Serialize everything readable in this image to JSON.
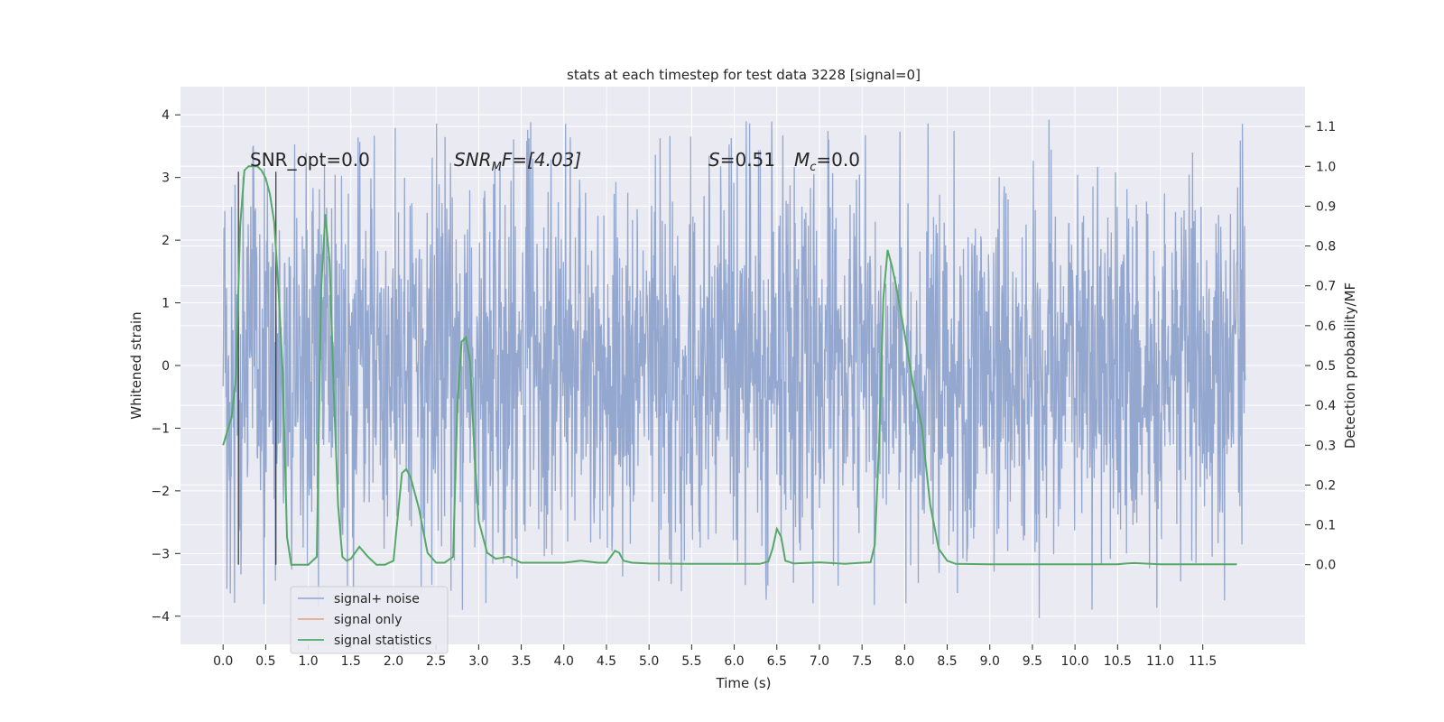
{
  "chart_data": {
    "type": "line",
    "title": "stats at each timestep for test data 3228 [signal=0]",
    "xlabel": "Time (s)",
    "ylabel": "Whitened strain",
    "y2label": "Detection probability/MF",
    "xlim": [
      -0.5,
      12.7
    ],
    "ylim": [
      -4.45,
      4.45
    ],
    "y2lim": [
      -0.2,
      1.2
    ],
    "x_ticks": [
      0.0,
      0.5,
      1.0,
      1.5,
      2.0,
      2.5,
      3.0,
      3.5,
      4.0,
      4.5,
      5.0,
      5.5,
      6.0,
      6.5,
      7.0,
      7.5,
      8.0,
      8.5,
      9.0,
      9.5,
      10.0,
      10.5,
      11.0,
      11.5
    ],
    "x_tick_labels": [
      "0.0",
      "0.5",
      "1.0",
      "1.5",
      "2.0",
      "2.5",
      "3.0",
      "3.5",
      "4.0",
      "4.5",
      "5.0",
      "5.5",
      "6.0",
      "6.5",
      "7.0",
      "7.5",
      "8.0",
      "8.5",
      "9.0",
      "9.5",
      "10.0",
      "10.5",
      "11.0",
      "11.5"
    ],
    "y_ticks": [
      -4,
      -3,
      -2,
      -1,
      0,
      1,
      2,
      3,
      4
    ],
    "y_tick_labels": [
      "−4",
      "−3",
      "−2",
      "−1",
      "0",
      "1",
      "2",
      "3",
      "4"
    ],
    "y2_ticks": [
      0.0,
      0.1,
      0.2,
      0.3,
      0.4,
      0.5,
      0.6,
      0.7,
      0.8,
      0.9,
      1.0,
      1.1
    ],
    "y2_tick_labels": [
      "0.0",
      "0.1",
      "0.2",
      "0.3",
      "0.4",
      "0.5",
      "0.6",
      "0.7",
      "0.8",
      "0.9",
      "1.0",
      "1.1"
    ],
    "grid": true,
    "legend_position": "lower-left",
    "annotations": {
      "snr_opt": "SNR_opt=0.0",
      "snr_mf_main": "SNR",
      "snr_mf_sub": "M",
      "snr_mf_rest": "F=[4.03]",
      "s_label": "S",
      "s_value": "=0.51",
      "mc_label": "M",
      "mc_sub": "c",
      "mc_value": "=0.0"
    },
    "markers_x": [
      0.18,
      0.62
    ],
    "series": [
      {
        "name": "signal+ noise",
        "color": "#8fa3cc",
        "x_range": [
          0.0,
          12.0
        ],
        "approx_amplitude": 2.0,
        "peak_envelope": [
          3.3,
          4.1
        ],
        "trough_envelope": [
          -3.3,
          -4.1
        ]
      },
      {
        "name": "signal only",
        "color": "#dd8452",
        "values": []
      },
      {
        "name": "signal statistics",
        "color": "#55a868",
        "axis": "right",
        "x": [
          0.0,
          0.1,
          0.15,
          0.2,
          0.25,
          0.3,
          0.35,
          0.4,
          0.45,
          0.5,
          0.55,
          0.6,
          0.65,
          0.7,
          0.75,
          0.8,
          0.9,
          1.0,
          1.1,
          1.15,
          1.2,
          1.25,
          1.3,
          1.35,
          1.4,
          1.45,
          1.5,
          1.6,
          1.7,
          1.8,
          1.9,
          2.0,
          2.1,
          2.15,
          2.2,
          2.3,
          2.4,
          2.5,
          2.6,
          2.7,
          2.75,
          2.8,
          2.85,
          2.9,
          2.95,
          3.0,
          3.1,
          3.2,
          3.35,
          3.5,
          3.8,
          4.0,
          4.2,
          4.4,
          4.5,
          4.55,
          4.6,
          4.65,
          4.7,
          4.8,
          5.0,
          5.5,
          6.0,
          6.3,
          6.4,
          6.45,
          6.5,
          6.55,
          6.6,
          6.7,
          7.0,
          7.3,
          7.5,
          7.6,
          7.65,
          7.7,
          7.75,
          7.8,
          7.85,
          7.9,
          8.0,
          8.1,
          8.2,
          8.3,
          8.4,
          8.5,
          8.6,
          9.0,
          10.0,
          10.5,
          10.6,
          10.7,
          11.0,
          11.5,
          11.9
        ],
        "values": [
          0.3,
          0.37,
          0.47,
          0.85,
          0.99,
          1.0,
          1.0,
          1.0,
          0.99,
          0.97,
          0.93,
          0.86,
          0.69,
          0.48,
          0.07,
          0.0,
          0.0,
          0.0,
          0.02,
          0.69,
          0.88,
          0.76,
          0.43,
          0.15,
          0.02,
          0.01,
          0.015,
          0.045,
          0.02,
          0.0,
          0.0,
          0.01,
          0.23,
          0.24,
          0.22,
          0.14,
          0.03,
          0.005,
          0.005,
          0.02,
          0.4,
          0.56,
          0.57,
          0.51,
          0.28,
          0.11,
          0.03,
          0.015,
          0.02,
          0.005,
          0.005,
          0.005,
          0.01,
          0.005,
          0.005,
          0.02,
          0.035,
          0.03,
          0.01,
          0.005,
          0.003,
          0.002,
          0.002,
          0.002,
          0.008,
          0.04,
          0.09,
          0.07,
          0.01,
          0.003,
          0.006,
          0.002,
          0.005,
          0.006,
          0.05,
          0.3,
          0.67,
          0.79,
          0.75,
          0.7,
          0.58,
          0.45,
          0.35,
          0.15,
          0.04,
          0.01,
          0.002,
          0.001,
          0.001,
          0.001,
          0.003,
          0.004,
          0.001,
          0.001,
          0.001
        ]
      }
    ]
  }
}
